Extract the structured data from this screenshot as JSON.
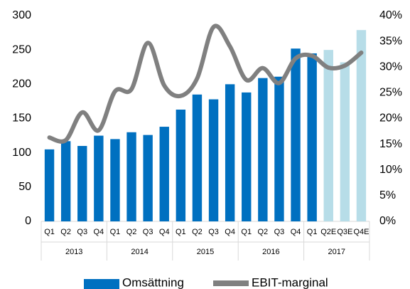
{
  "chart_data": {
    "type": "bar-line",
    "categories": [
      "Q1",
      "Q2",
      "Q3",
      "Q4",
      "Q1",
      "Q2",
      "Q3",
      "Q4",
      "Q1",
      "Q2",
      "Q3",
      "Q4",
      "Q1",
      "Q2",
      "Q3",
      "Q4",
      "Q1",
      "Q2E",
      "Q3E",
      "Q4E"
    ],
    "groups": [
      "2013",
      "2014",
      "2015",
      "2016",
      "2017"
    ],
    "series": [
      {
        "name": "Omsättning",
        "type": "bar",
        "color": "#0070c0",
        "colors": [
          "#0070c0",
          "#0070c0",
          "#0070c0",
          "#0070c0",
          "#0070c0",
          "#0070c0",
          "#0070c0",
          "#0070c0",
          "#0070c0",
          "#0070c0",
          "#0070c0",
          "#0070c0",
          "#0070c0",
          "#0070c0",
          "#0070c0",
          "#0070c0",
          "#0070c0",
          "#b7dde8",
          "#b7dde8",
          "#b7dde8"
        ],
        "values": [
          105,
          117,
          110,
          125,
          120,
          130,
          126,
          138,
          163,
          185,
          178,
          200,
          188,
          209,
          211,
          252,
          245,
          250,
          232,
          279
        ]
      },
      {
        "name": "EBIT-marginal",
        "type": "line",
        "axis": "y2",
        "color": "#808080",
        "values": [
          16.3,
          15.8,
          21.2,
          17.7,
          25.3,
          25.7,
          34.7,
          26.4,
          24.4,
          27.8,
          37.8,
          34.0,
          27.5,
          29.8,
          26.9,
          31.7,
          32.2,
          29.9,
          30.3,
          32.8
        ]
      }
    ],
    "ylim": [
      0,
      300
    ],
    "yticks": [
      0,
      50,
      100,
      150,
      200,
      250,
      300
    ],
    "y2lim": [
      0,
      40
    ],
    "y2ticks": [
      {
        "value": 0,
        "label": "0%"
      },
      {
        "value": 5,
        "label": "5%"
      },
      {
        "value": 10,
        "label": "10%"
      },
      {
        "value": 15,
        "label": "15%"
      },
      {
        "value": 20,
        "label": "20%"
      },
      {
        "value": 25,
        "label": "25%"
      },
      {
        "value": 30,
        "label": "30%"
      },
      {
        "value": 35,
        "label": "35%"
      },
      {
        "value": 40,
        "label": "40%"
      }
    ],
    "grid": false,
    "legend": "bottom"
  }
}
